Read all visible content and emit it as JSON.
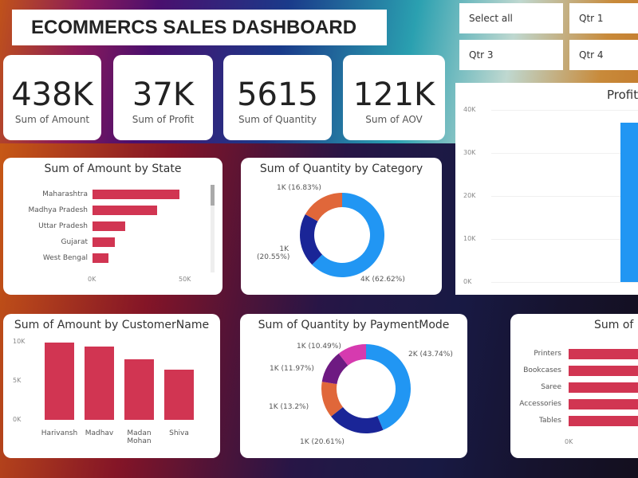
{
  "title": "ECOMMERCS SALES DASHBOARD",
  "slicer": {
    "options": [
      "Select all",
      "Qtr 1",
      "Qtr 3",
      "Qtr 4"
    ]
  },
  "kpis": [
    {
      "value": "438K",
      "label": "Sum of Amount"
    },
    {
      "value": "37K",
      "label": "Sum of Profit"
    },
    {
      "value": "5615",
      "label": "Sum of Quantity"
    },
    {
      "value": "121K",
      "label": "Sum of AOV"
    }
  ],
  "colors": {
    "bar": "#d13552",
    "blue": "#2196f3",
    "navy": "#1a2597",
    "orange": "#e0673a",
    "purple": "#6e1a82",
    "magenta": "#d63aaf"
  },
  "chart_data": [
    {
      "type": "bar",
      "orientation": "horizontal",
      "title": "Sum of Amount by State",
      "categories": [
        "Maharashtra",
        "Madhya Pradesh",
        "Uttar Pradesh",
        "Gujarat",
        "West Bengal"
      ],
      "values": [
        47000,
        35000,
        17500,
        12000,
        8500
      ],
      "xticks": [
        "0K",
        "50K"
      ],
      "xlim": [
        0,
        50000
      ]
    },
    {
      "type": "pie",
      "donut": true,
      "title": "Sum of Quantity by Category",
      "slices": [
        {
          "label": "4K (62.62%)",
          "value": 62.62,
          "color": "#2196f3"
        },
        {
          "label": "1K (20.55%)",
          "value": 20.55,
          "color": "#1a2597"
        },
        {
          "label": "1K (16.83%)",
          "value": 16.83,
          "color": "#e0673a"
        }
      ]
    },
    {
      "type": "bar",
      "title": "Profit",
      "yticks": [
        "40K",
        "30K",
        "20K",
        "10K",
        "0K"
      ],
      "ylim": [
        0,
        40000
      ],
      "values": [
        37000
      ]
    },
    {
      "type": "bar",
      "title": "Sum of Amount by CustomerName",
      "categories": [
        "Harivansh",
        "Madhav",
        "Madan Mohan",
        "Shiva"
      ],
      "values": [
        9900,
        9400,
        7800,
        6400
      ],
      "yticks": [
        "10K",
        "5K",
        "0K"
      ],
      "ylim": [
        0,
        10000
      ]
    },
    {
      "type": "pie",
      "donut": true,
      "title": "Sum of Quantity by PaymentMode",
      "slices": [
        {
          "label": "2K (43.74%)",
          "value": 43.74,
          "color": "#2196f3"
        },
        {
          "label": "1K (20.61%)",
          "value": 20.61,
          "color": "#1a2597"
        },
        {
          "label": "1K (13.2%)",
          "value": 13.2,
          "color": "#e0673a"
        },
        {
          "label": "1K (11.97%)",
          "value": 11.97,
          "color": "#6e1a82"
        },
        {
          "label": "1K (10.49%)",
          "value": 10.49,
          "color": "#d63aaf"
        }
      ]
    },
    {
      "type": "bar",
      "orientation": "horizontal",
      "title": "Sum of P",
      "categories": [
        "Printers",
        "Bookcases",
        "Saree",
        "Accessories",
        "Tables"
      ],
      "xticks": [
        "0K"
      ]
    }
  ]
}
